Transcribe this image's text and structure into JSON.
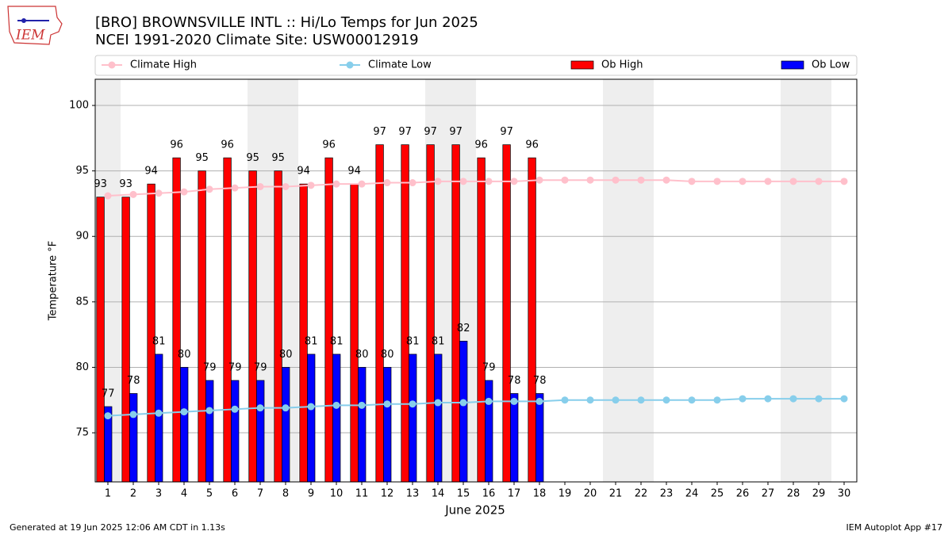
{
  "chart_data": {
    "type": "bar",
    "title": "[BRO] BROWNSVILLE INTL :: Hi/Lo Temps for Jun 2025",
    "subtitle": "NCEI 1991-2020 Climate Site: USW00012919",
    "logo_text": "IEM",
    "xlabel": "June 2025",
    "ylabel": "Temperature °F",
    "footer_left": "Generated at 19 Jun 2025 12:06 AM CDT in 1.13s",
    "footer_right": "IEM Autoplot App #17",
    "x": [
      1,
      2,
      3,
      4,
      5,
      6,
      7,
      8,
      9,
      10,
      11,
      12,
      13,
      14,
      15,
      16,
      17,
      18,
      19,
      20,
      21,
      22,
      23,
      24,
      25,
      26,
      27,
      28,
      29,
      30
    ],
    "xlim": [
      0.5,
      30.5
    ],
    "xticks": [
      1,
      2,
      3,
      4,
      5,
      6,
      7,
      8,
      9,
      10,
      11,
      12,
      13,
      14,
      15,
      16,
      17,
      18,
      19,
      20,
      21,
      22,
      23,
      24,
      25,
      26,
      27,
      28,
      29,
      30
    ],
    "ylim": [
      71.25,
      102
    ],
    "yticks": [
      75,
      80,
      85,
      90,
      95,
      100
    ],
    "grid": true,
    "shaded_ranges": [
      [
        0.5,
        1.5
      ],
      [
        6.5,
        8.5
      ],
      [
        13.5,
        15.5
      ],
      [
        20.5,
        22.5
      ],
      [
        27.5,
        29.5
      ]
    ],
    "shade_color": "#eeeeee",
    "series": [
      {
        "name": "Climate High",
        "color": "#ffc0cb",
        "style": "line",
        "values": [
          93.1,
          93.2,
          93.3,
          93.4,
          93.6,
          93.7,
          93.8,
          93.8,
          93.9,
          94.0,
          94.0,
          94.1,
          94.1,
          94.2,
          94.2,
          94.2,
          94.2,
          94.3,
          94.3,
          94.3,
          94.3,
          94.3,
          94.3,
          94.2,
          94.2,
          94.2,
          94.2,
          94.2,
          94.2,
          94.2
        ]
      },
      {
        "name": "Climate Low",
        "color": "#87ceeb",
        "style": "line",
        "values": [
          76.3,
          76.4,
          76.5,
          76.6,
          76.7,
          76.8,
          76.9,
          76.9,
          77.0,
          77.1,
          77.1,
          77.2,
          77.2,
          77.3,
          77.3,
          77.4,
          77.4,
          77.4,
          77.5,
          77.5,
          77.5,
          77.5,
          77.5,
          77.5,
          77.5,
          77.6,
          77.6,
          77.6,
          77.6,
          77.6
        ]
      },
      {
        "name": "Ob High",
        "color": "#ff0000",
        "style": "bar",
        "values": [
          93,
          93,
          94,
          96,
          95,
          96,
          95,
          95,
          94,
          96,
          94,
          97,
          97,
          97,
          97,
          96,
          97,
          96,
          null,
          null,
          null,
          null,
          null,
          null,
          null,
          null,
          null,
          null,
          null,
          null
        ]
      },
      {
        "name": "Ob Low",
        "color": "#0000ff",
        "style": "bar",
        "values": [
          77,
          78,
          81,
          80,
          79,
          79,
          79,
          80,
          81,
          81,
          80,
          80,
          81,
          81,
          82,
          79,
          78,
          78,
          null,
          null,
          null,
          null,
          null,
          null,
          null,
          null,
          null,
          null,
          null,
          null
        ]
      }
    ]
  }
}
